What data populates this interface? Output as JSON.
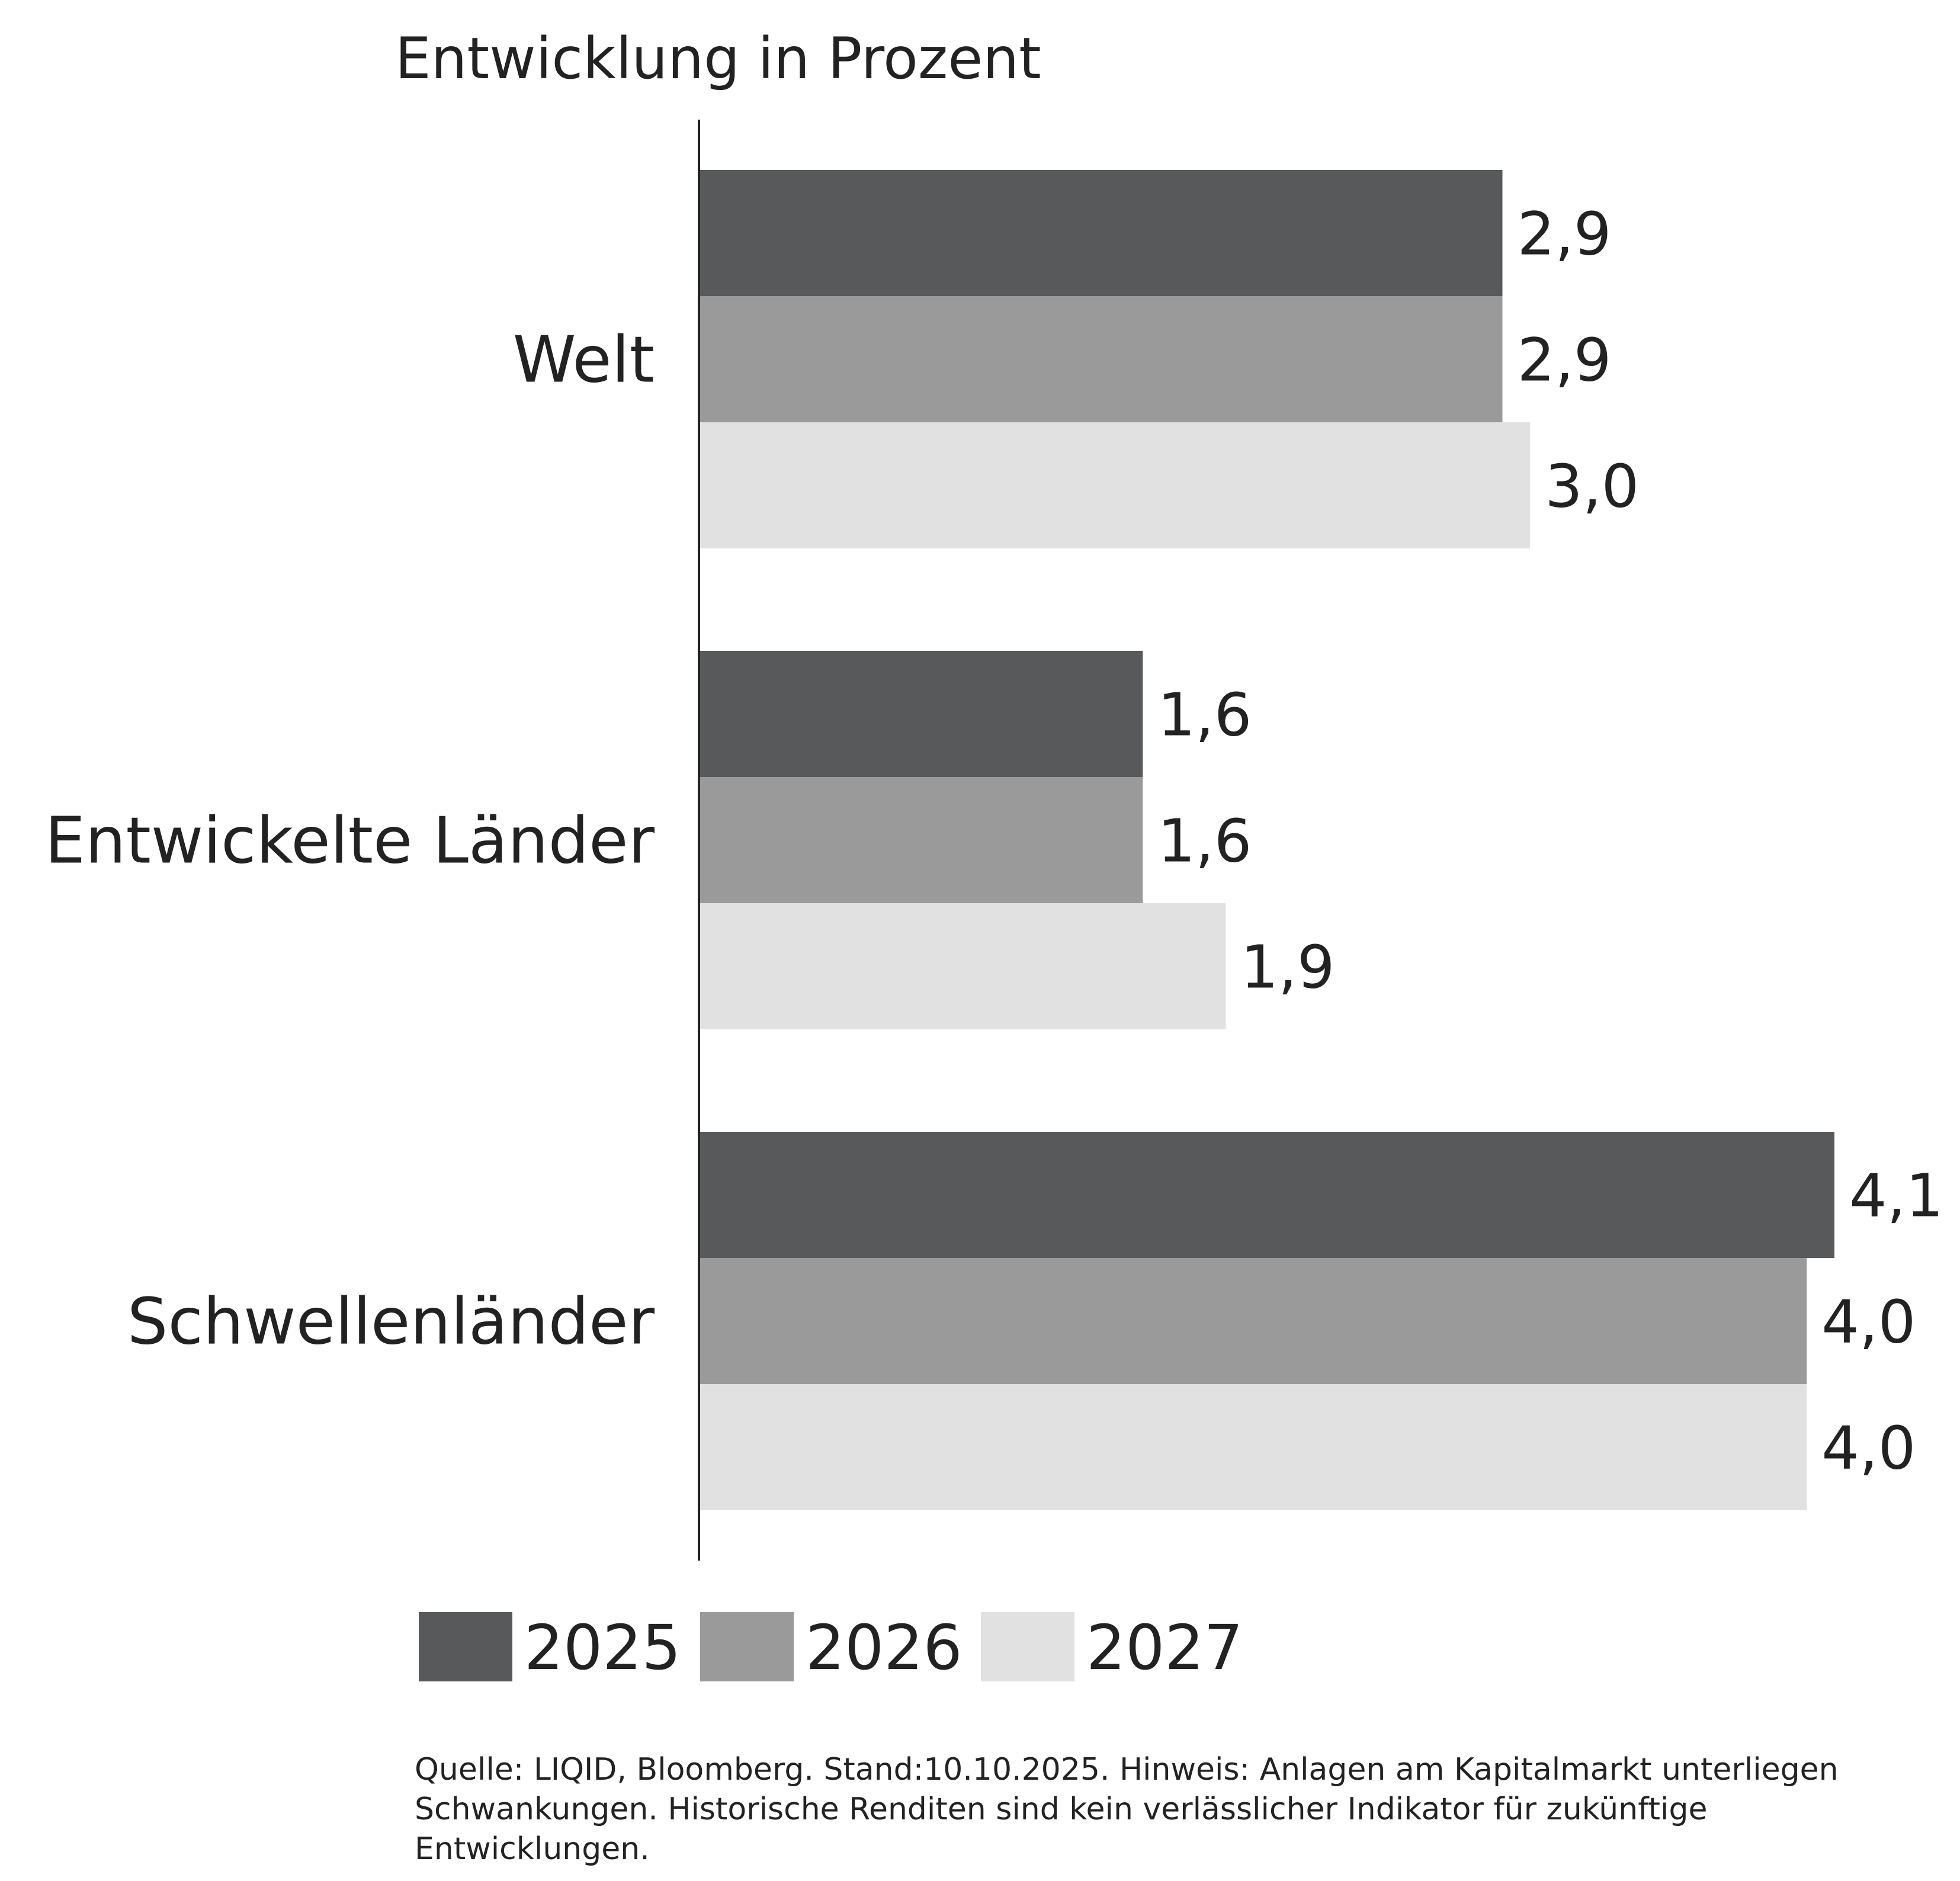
{
  "chart_data": {
    "type": "bar",
    "orientation": "horizontal",
    "title": "Entwicklung in Prozent",
    "categories": [
      "Welt",
      "Entwickelte Länder",
      "Schwellenländer"
    ],
    "series": [
      {
        "name": "2025",
        "values": [
          2.9,
          1.6,
          4.1
        ],
        "labels": [
          "2,9",
          "1,6",
          "4,1"
        ],
        "color": "#58595b"
      },
      {
        "name": "2026",
        "values": [
          2.9,
          1.6,
          4.0
        ],
        "labels": [
          "2,9",
          "1,6",
          "4,0"
        ],
        "color": "#9a9a9a"
      },
      {
        "name": "2027",
        "values": [
          3.0,
          1.9,
          4.0
        ],
        "labels": [
          "3,0",
          "1,9",
          "4,0"
        ],
        "color": "#e1e1e1"
      }
    ],
    "xlim": [
      0,
      4.1
    ],
    "grid": false,
    "legend_position": "bottom"
  },
  "source_note": "Quelle: LIQID, Bloomberg. Stand:10.10.2025. Hinweis: Anlagen am Kapitalmarkt unterliegen Schwankungen. Historische Renditen sind kein verlässlicher Indikator für zukünftige Entwicklungen."
}
